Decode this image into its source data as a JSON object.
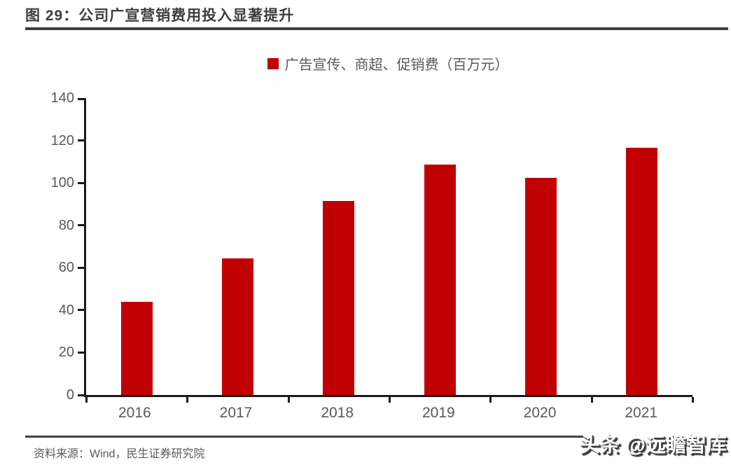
{
  "figure": {
    "title": "图 29：公司广宣营销费用投入显著提升",
    "source": "资料来源：Wind，民生证券研究院",
    "watermark": "头条 @远瞻智库"
  },
  "chart_data": {
    "type": "bar",
    "title": "图 29：公司广宣营销费用投入显著提升",
    "categories": [
      "2016",
      "2017",
      "2018",
      "2019",
      "2020",
      "2021"
    ],
    "series": [
      {
        "name": "广告宣传、商超、促销费（百万元）",
        "values": [
          44,
          64.5,
          91.5,
          108.5,
          102.5,
          116.5
        ]
      }
    ],
    "xlabel": "",
    "ylabel": "",
    "ylim": [
      0,
      140
    ],
    "yticks": [
      0,
      20,
      40,
      60,
      80,
      100,
      120,
      140
    ],
    "grid": false,
    "legend_position": "top-center",
    "colors": {
      "bar": "#c00000",
      "axis": "#1a1a1a",
      "tick_label": "#595959",
      "title_text": "#3d3d3d",
      "rule": "#404040",
      "watermark_shadow": "#3e3e3e"
    }
  }
}
